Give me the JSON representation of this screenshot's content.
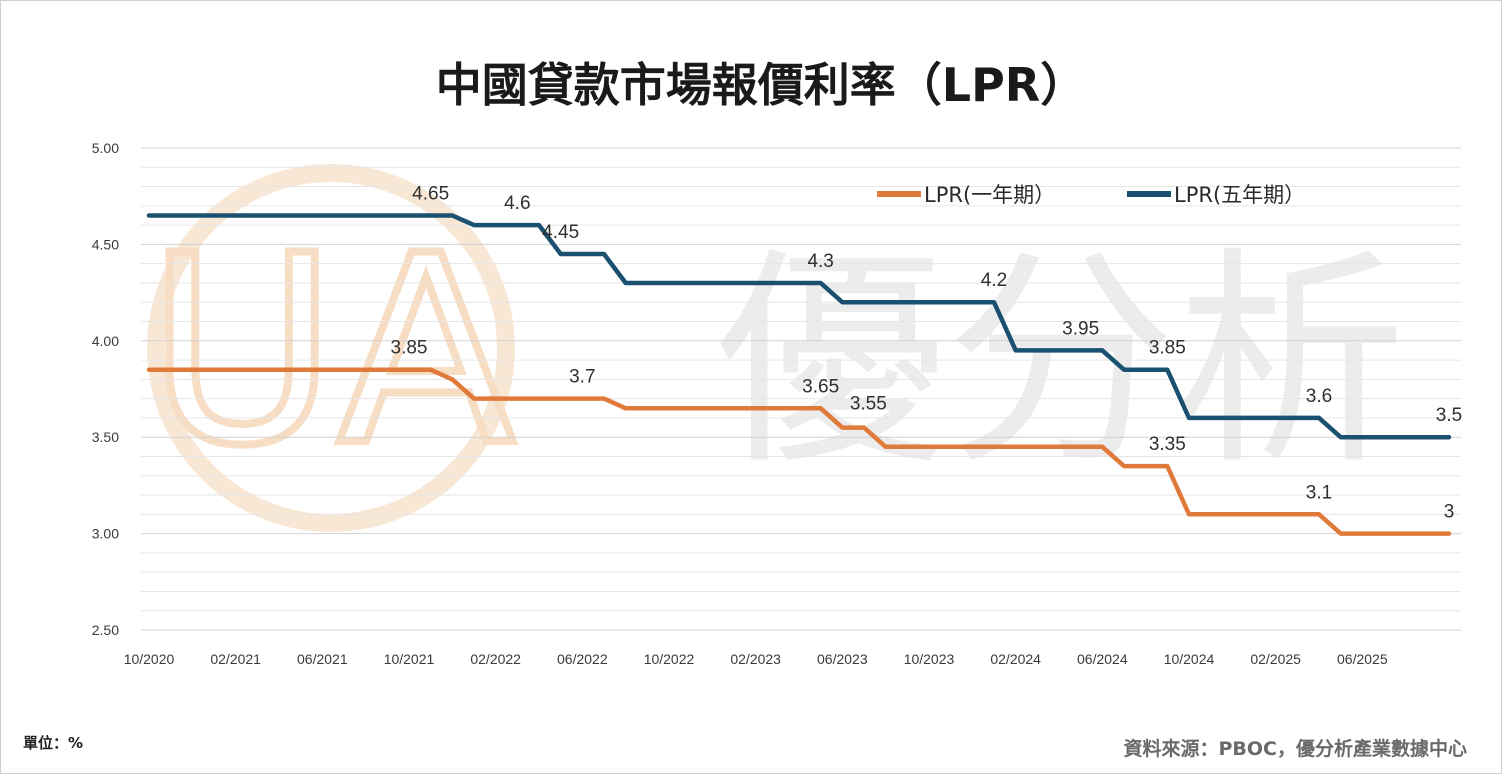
{
  "chart_data": {
    "type": "line",
    "title": "中國貸款市場報價利率（LPR）",
    "ylim": [
      2.5,
      5.0
    ],
    "yticks": [
      "5.00",
      "4.50",
      "4.00",
      "3.50",
      "3.00",
      "2.50"
    ],
    "xticks": [
      "10/2020",
      "02/2021",
      "06/2021",
      "10/2021",
      "02/2022",
      "06/2022",
      "10/2022",
      "02/2023",
      "06/2023",
      "10/2023",
      "02/2024",
      "06/2024",
      "10/2024",
      "02/2025",
      "06/2025"
    ],
    "legend_position": "top-right",
    "grid": true,
    "series": [
      {
        "name": "LPR(一年期）",
        "color": "#E07A3A",
        "points": [
          {
            "x": "2020-10",
            "y": 3.85
          },
          {
            "x": "2021-11",
            "y": 3.85
          },
          {
            "x": "2021-12",
            "y": 3.8
          },
          {
            "x": "2022-01",
            "y": 3.7
          },
          {
            "x": "2022-07",
            "y": 3.7
          },
          {
            "x": "2022-08",
            "y": 3.65
          },
          {
            "x": "2023-05",
            "y": 3.65
          },
          {
            "x": "2023-06",
            "y": 3.55
          },
          {
            "x": "2023-07",
            "y": 3.55
          },
          {
            "x": "2023-08",
            "y": 3.45
          },
          {
            "x": "2024-06",
            "y": 3.45
          },
          {
            "x": "2024-07",
            "y": 3.35
          },
          {
            "x": "2024-09",
            "y": 3.35
          },
          {
            "x": "2024-10",
            "y": 3.1
          },
          {
            "x": "2025-04",
            "y": 3.1
          },
          {
            "x": "2025-05",
            "y": 3.0
          },
          {
            "x": "2025-10",
            "y": 3.0
          }
        ]
      },
      {
        "name": "LPR(五年期）",
        "color": "#1B5170",
        "points": [
          {
            "x": "2020-10",
            "y": 4.65
          },
          {
            "x": "2021-12",
            "y": 4.65
          },
          {
            "x": "2022-01",
            "y": 4.6
          },
          {
            "x": "2022-04",
            "y": 4.6
          },
          {
            "x": "2022-05",
            "y": 4.45
          },
          {
            "x": "2022-07",
            "y": 4.45
          },
          {
            "x": "2022-08",
            "y": 4.3
          },
          {
            "x": "2023-05",
            "y": 4.3
          },
          {
            "x": "2023-06",
            "y": 4.2
          },
          {
            "x": "2024-01",
            "y": 4.2
          },
          {
            "x": "2024-02",
            "y": 3.95
          },
          {
            "x": "2024-06",
            "y": 3.95
          },
          {
            "x": "2024-07",
            "y": 3.85
          },
          {
            "x": "2024-09",
            "y": 3.85
          },
          {
            "x": "2024-10",
            "y": 3.6
          },
          {
            "x": "2025-04",
            "y": 3.6
          },
          {
            "x": "2025-05",
            "y": 3.5
          },
          {
            "x": "2025-10",
            "y": 3.5
          }
        ]
      }
    ],
    "annotations": [
      {
        "series": 0,
        "text": "3.85",
        "x": "2021-10",
        "y": 3.85,
        "pos": "above"
      },
      {
        "series": 0,
        "text": "3.7",
        "x": "2022-06",
        "y": 3.7,
        "pos": "above"
      },
      {
        "series": 0,
        "text": "3.65",
        "x": "2023-05",
        "y": 3.65,
        "pos": "above"
      },
      {
        "series": 0,
        "text": "3.55",
        "x": "2023-06",
        "y": 3.55,
        "pos": "above-right"
      },
      {
        "series": 0,
        "text": "3.35",
        "x": "2024-09",
        "y": 3.35,
        "pos": "above"
      },
      {
        "series": 0,
        "text": "3.1",
        "x": "2025-04",
        "y": 3.1,
        "pos": "above"
      },
      {
        "series": 0,
        "text": "3",
        "x": "2025-10",
        "y": 3.0,
        "pos": "above"
      },
      {
        "series": 1,
        "text": "4.65",
        "x": "2021-11",
        "y": 4.65,
        "pos": "above"
      },
      {
        "series": 1,
        "text": "4.6",
        "x": "2022-03",
        "y": 4.6,
        "pos": "above"
      },
      {
        "series": 1,
        "text": "4.45",
        "x": "2022-05",
        "y": 4.45,
        "pos": "above"
      },
      {
        "series": 1,
        "text": "4.3",
        "x": "2023-05",
        "y": 4.3,
        "pos": "above"
      },
      {
        "series": 1,
        "text": "4.2",
        "x": "2024-01",
        "y": 4.2,
        "pos": "above"
      },
      {
        "series": 1,
        "text": "3.95",
        "x": "2024-05",
        "y": 3.95,
        "pos": "above"
      },
      {
        "series": 1,
        "text": "3.85",
        "x": "2024-09",
        "y": 3.85,
        "pos": "above"
      },
      {
        "series": 1,
        "text": "3.6",
        "x": "2025-04",
        "y": 3.6,
        "pos": "above"
      },
      {
        "series": 1,
        "text": "3.5",
        "x": "2025-10",
        "y": 3.5,
        "pos": "above"
      }
    ]
  },
  "footer": {
    "unit": "單位：%",
    "source": "資料來源：PBOC，優分析產業數據中心"
  },
  "watermark": {
    "logo_text": "UA",
    "text": "優分析",
    "logo_color": "#F6DCC0"
  }
}
